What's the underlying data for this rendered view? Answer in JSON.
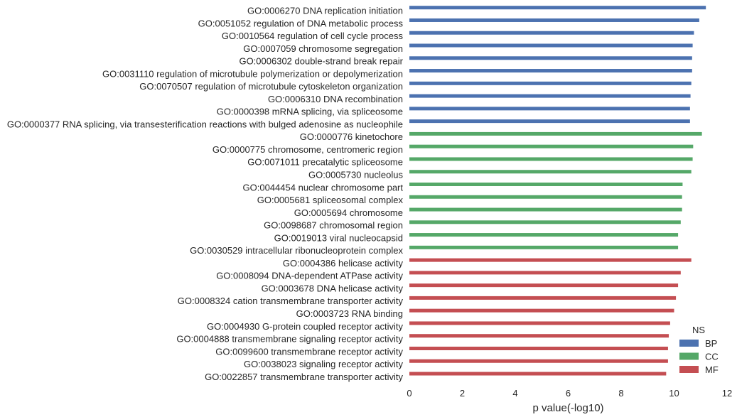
{
  "chart_data": {
    "type": "bar",
    "orientation": "horizontal",
    "xlabel": "p value(-log10)",
    "ylabel": "",
    "title": "",
    "xlim": [
      0,
      12
    ],
    "xticks": [
      0,
      2,
      4,
      6,
      8,
      10,
      12
    ],
    "grid": false,
    "legend": {
      "title": "NS",
      "placement": "bottom-right",
      "entries": [
        {
          "name": "BP",
          "color": "#4c72b0"
        },
        {
          "name": "CC",
          "color": "#55a868"
        },
        {
          "name": "MF",
          "color": "#c44e52"
        }
      ]
    },
    "categories": [
      "GO:0006270 DNA replication initiation",
      "GO:0051052 regulation of DNA metabolic process",
      "GO:0010564 regulation of cell cycle process",
      "GO:0007059 chromosome segregation",
      "GO:0006302 double-strand break repair",
      "GO:0031110 regulation of microtubule polymerization or depolymerization",
      "GO:0070507 regulation of microtubule cytoskeleton organization",
      "GO:0006310 DNA recombination",
      "GO:0000398 mRNA splicing, via spliceosome",
      "GO:0000377 RNA splicing, via transesterification reactions with bulged adenosine as nucleophile",
      "GO:0000776 kinetochore",
      "GO:0000775 chromosome, centromeric region",
      "GO:0071011 precatalytic spliceosome",
      "GO:0005730 nucleolus",
      "GO:0044454 nuclear chromosome part",
      "GO:0005681 spliceosomal complex",
      "GO:0005694 chromosome",
      "GO:0098687 chromosomal region",
      "GO:0019013 viral nucleocapsid",
      "GO:0030529 intracellular ribonucleoprotein complex",
      "GO:0004386 helicase activity",
      "GO:0008094 DNA-dependent ATPase activity",
      "GO:0003678 DNA helicase activity",
      "GO:0008324 cation transmembrane transporter activity",
      "GO:0003723 RNA binding",
      "GO:0004930 G-protein coupled receptor activity",
      "GO:0004888 transmembrane signaling receptor activity",
      "GO:0099600 transmembrane receptor activity",
      "GO:0038023 signaling receptor activity",
      "GO:0022857 transmembrane transporter activity"
    ],
    "values": [
      11.2,
      10.95,
      10.75,
      10.7,
      10.68,
      10.68,
      10.65,
      10.62,
      10.6,
      10.6,
      11.05,
      10.72,
      10.7,
      10.65,
      10.32,
      10.3,
      10.3,
      10.25,
      10.15,
      10.15,
      10.65,
      10.25,
      10.15,
      10.07,
      10.0,
      9.85,
      9.8,
      9.77,
      9.77,
      9.7
    ],
    "groups": [
      "BP",
      "BP",
      "BP",
      "BP",
      "BP",
      "BP",
      "BP",
      "BP",
      "BP",
      "BP",
      "CC",
      "CC",
      "CC",
      "CC",
      "CC",
      "CC",
      "CC",
      "CC",
      "CC",
      "CC",
      "MF",
      "MF",
      "MF",
      "MF",
      "MF",
      "MF",
      "MF",
      "MF",
      "MF",
      "MF"
    ]
  }
}
